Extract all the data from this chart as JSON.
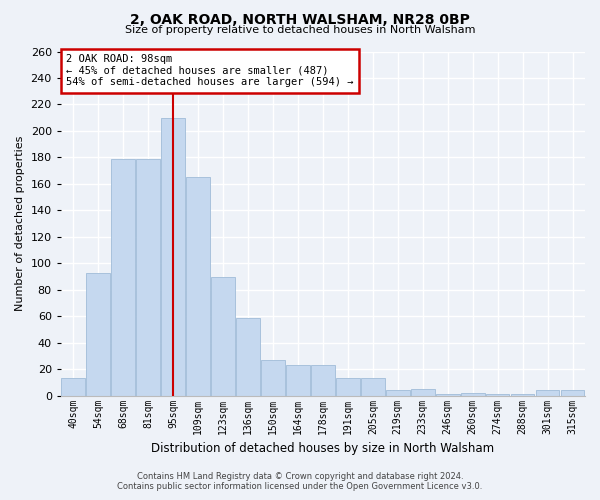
{
  "title": "2, OAK ROAD, NORTH WALSHAM, NR28 0BP",
  "subtitle": "Size of property relative to detached houses in North Walsham",
  "xlabel": "Distribution of detached houses by size in North Walsham",
  "ylabel": "Number of detached properties",
  "bar_labels": [
    "40sqm",
    "54sqm",
    "68sqm",
    "81sqm",
    "95sqm",
    "109sqm",
    "123sqm",
    "136sqm",
    "150sqm",
    "164sqm",
    "178sqm",
    "191sqm",
    "205sqm",
    "219sqm",
    "233sqm",
    "246sqm",
    "260sqm",
    "274sqm",
    "288sqm",
    "301sqm",
    "315sqm"
  ],
  "bar_values": [
    13,
    93,
    179,
    179,
    210,
    165,
    90,
    59,
    27,
    23,
    23,
    13,
    13,
    4,
    5,
    1,
    2,
    1,
    1,
    4,
    4
  ],
  "bar_color": "#c5d8ef",
  "bar_edge_color": "#a0bcd8",
  "vline_index": 4,
  "vline_color": "#cc0000",
  "annotation_title": "2 OAK ROAD: 98sqm",
  "annotation_line1": "← 45% of detached houses are smaller (487)",
  "annotation_line2": "54% of semi-detached houses are larger (594) →",
  "annotation_box_facecolor": "#ffffff",
  "annotation_box_edgecolor": "#cc0000",
  "ylim": [
    0,
    260
  ],
  "yticks": [
    0,
    20,
    40,
    60,
    80,
    100,
    120,
    140,
    160,
    180,
    200,
    220,
    240,
    260
  ],
  "footer_line1": "Contains HM Land Registry data © Crown copyright and database right 2024.",
  "footer_line2": "Contains public sector information licensed under the Open Government Licence v3.0.",
  "bg_color": "#eef2f8"
}
